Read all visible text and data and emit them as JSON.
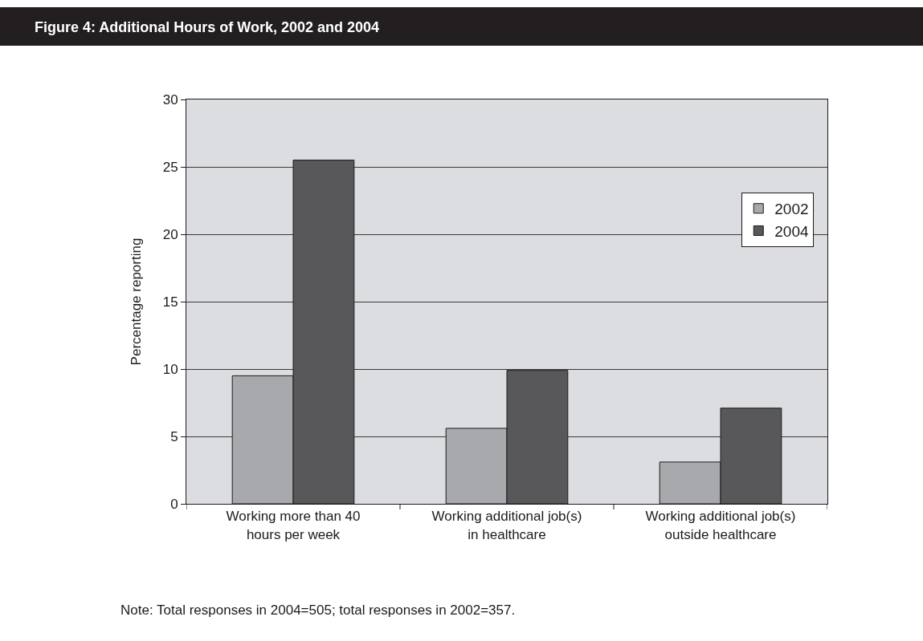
{
  "chart_data": {
    "type": "bar",
    "title": "Figure 4: Additional Hours of Work, 2002 and 2004",
    "ylabel": "Percentage reporting",
    "categories": [
      "Working more than 40 hours per week",
      "Working additional job(s) in healthcare",
      "Working additional job(s) outside healthcare"
    ],
    "series": [
      {
        "name": "2002",
        "color": "#a8a9ad",
        "values": [
          9.5,
          5.6,
          3.1
        ]
      },
      {
        "name": "2004",
        "color": "#58585a",
        "values": [
          25.5,
          9.9,
          7.1
        ]
      }
    ],
    "ylim": [
      0,
      30
    ],
    "yticks": [
      0,
      5,
      10,
      15,
      20,
      25,
      30
    ],
    "grid": "y",
    "legend": "top right",
    "annotations": [
      "Note: Total responses in 2004=505; total responses in 2002=357."
    ]
  }
}
